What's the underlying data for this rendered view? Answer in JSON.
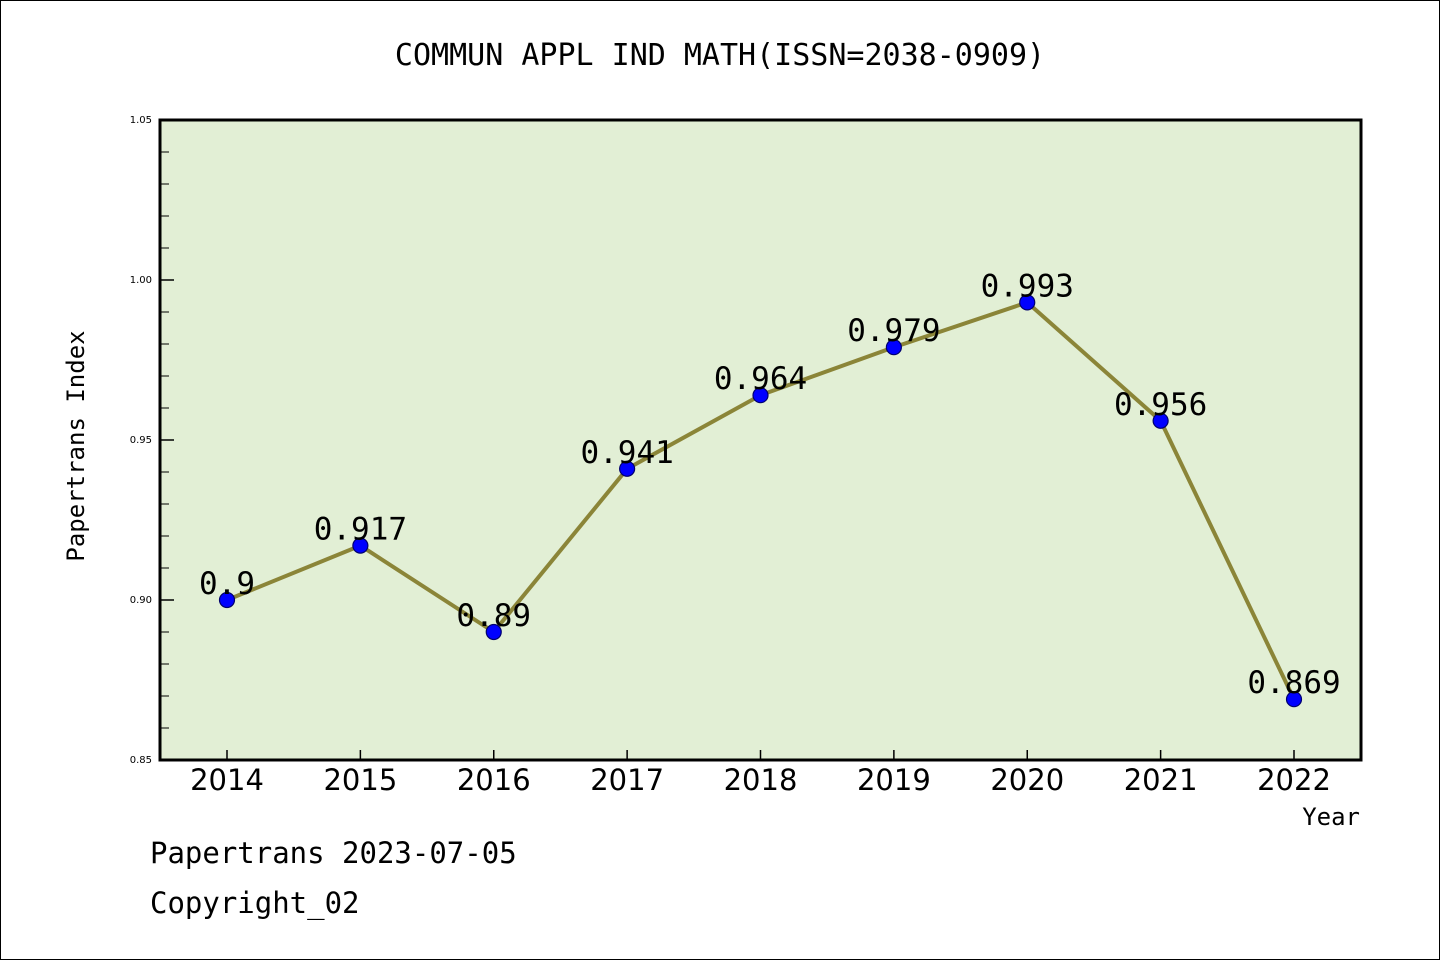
{
  "chart_data": {
    "type": "line",
    "title": "COMMUN APPL IND MATH(ISSN=2038-0909)",
    "xlabel": "Year",
    "ylabel": "Papertrans Index",
    "categories": [
      "2014",
      "2015",
      "2016",
      "2017",
      "2018",
      "2019",
      "2020",
      "2021",
      "2022"
    ],
    "values": [
      0.9,
      0.917,
      0.89,
      0.941,
      0.964,
      0.979,
      0.993,
      0.956,
      0.869
    ],
    "data_labels": [
      "0.9",
      "0.917",
      "0.89",
      "0.941",
      "0.964",
      "0.979",
      "0.993",
      "0.956",
      "0.869"
    ],
    "ylim": [
      0.85,
      1.05
    ],
    "yticks": [
      "0.85",
      "0.90",
      "0.95",
      "1.00",
      "1.05"
    ],
    "grid": false,
    "colors": {
      "plot_background": "#e2efd5",
      "line": "#8b8538",
      "marker": "#0000ff"
    }
  },
  "footer": {
    "line1": "Papertrans 2023-07-05",
    "line2": "Copyright_02"
  }
}
